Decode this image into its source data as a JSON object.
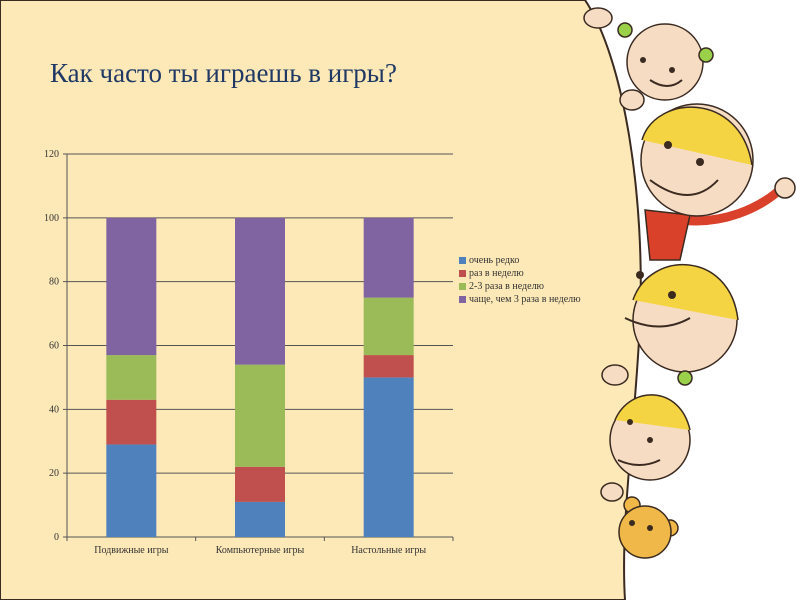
{
  "slide": {
    "title": "Как часто ты играешь в игры?",
    "illustration": "peeking-kids"
  },
  "chart_data": {
    "type": "bar",
    "stacked": true,
    "title": "",
    "xlabel": "",
    "ylabel": "",
    "categories": [
      "Подвижные игры",
      "Компьютерные игры",
      "Настольные игры"
    ],
    "series": [
      {
        "name": "очень редко",
        "color": "#4f81bd",
        "values": [
          29,
          11,
          50
        ]
      },
      {
        "name": "раз в неделю",
        "color": "#c0504d",
        "values": [
          14,
          11,
          7
        ]
      },
      {
        "name": "2-3 раза в неделю",
        "color": "#9bbb59",
        "values": [
          14,
          32,
          18
        ]
      },
      {
        "name": "чаще, чем 3 раза в неделю",
        "color": "#8064a2",
        "values": [
          43,
          46,
          25
        ]
      }
    ],
    "ylim": [
      0,
      120
    ],
    "yticks": [
      0,
      20,
      40,
      60,
      80,
      100,
      120
    ],
    "grid": true,
    "legend_position": "right"
  }
}
